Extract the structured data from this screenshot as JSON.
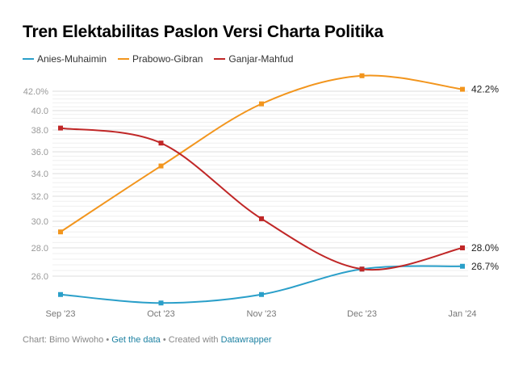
{
  "chart_data": {
    "type": "line",
    "title": "Tren Elektabilitas Paslon Versi Charta Politika",
    "categories": [
      "Sep '23",
      "Oct '23",
      "Nov '23",
      "Dec '23",
      "Jan '24"
    ],
    "y_ticks": [
      "42.0%",
      "40.0",
      "38.0",
      "36.0",
      "34.0",
      "32.0",
      "30.0",
      "28.0",
      "26.0"
    ],
    "y_tick_values": [
      42,
      40,
      38,
      36,
      34,
      32,
      30,
      28,
      26
    ],
    "grid": true,
    "legend_position": "top-left",
    "series": [
      {
        "name": "Anies-Muhaimin",
        "color": "#2a9fc9",
        "values": [
          24.7,
          24.1,
          24.7,
          26.5,
          26.7
        ],
        "end_label": "26.7%"
      },
      {
        "name": "Prabowo-Gibran",
        "color": "#f2951d",
        "values": [
          29.2,
          34.7,
          40.7,
          43.6,
          42.2
        ],
        "end_label": "42.2%"
      },
      {
        "name": "Ganjar-Mahfud",
        "color": "#c02727",
        "values": [
          38.2,
          36.8,
          30.2,
          26.5,
          28.0
        ],
        "end_label": "28.0%"
      }
    ]
  },
  "footer": {
    "credit": "Chart: Bimo Wiwoho",
    "sep": " • ",
    "get_data": "Get the data",
    "created": "Created with ",
    "tool": "Datawrapper"
  }
}
